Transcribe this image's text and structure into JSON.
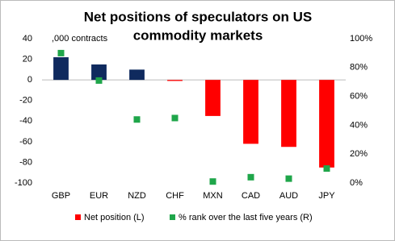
{
  "chart_data": {
    "type": "bar",
    "title": [
      "Net positions of speculators on US",
      "commodity markets"
    ],
    "annotation": ",000 contracts",
    "categories": [
      "GBP",
      "EUR",
      "NZD",
      "CHF",
      "MXN",
      "CAD",
      "AUD",
      "JPY"
    ],
    "series": [
      {
        "name": "Net position (L)",
        "type": "bar",
        "color": "#ff0000",
        "positive_color": "#0f2a5e",
        "values": [
          22,
          15,
          10,
          -1,
          -35,
          -62,
          -65,
          -85
        ]
      },
      {
        "name": "% rank over the last five years (R)",
        "type": "scatter",
        "axis": "y2",
        "color": "#1fa64a",
        "values": [
          90,
          71,
          44,
          45,
          1,
          4,
          3,
          10
        ]
      }
    ],
    "ylim": [
      -100,
      40
    ],
    "yticks": [
      -100,
      -80,
      -60,
      -40,
      -20,
      0,
      20,
      40
    ],
    "y2lim": [
      0,
      100
    ],
    "y2ticks": [
      {
        "value": 0,
        "label": "0%"
      },
      {
        "value": 20,
        "label": "20%"
      },
      {
        "value": 40,
        "label": "40%"
      },
      {
        "value": 60,
        "label": "60%"
      },
      {
        "value": 80,
        "label": "80%"
      },
      {
        "value": 100,
        "label": "100%"
      }
    ],
    "legend": "bottom"
  }
}
